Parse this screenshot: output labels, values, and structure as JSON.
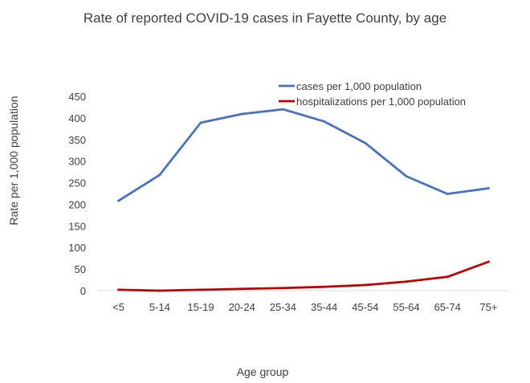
{
  "chart_data": {
    "type": "line",
    "title": "Rate of reported COVID-19 cases in Fayette County, by age",
    "xlabel": "Age group",
    "ylabel": "Rate per 1,000 population",
    "categories": [
      "<5",
      "5-14",
      "15-19",
      "20-24",
      "25-34",
      "35-44",
      "45-54",
      "55-64",
      "65-74",
      "75+"
    ],
    "ylim": [
      0,
      450
    ],
    "yticks": [
      0,
      50,
      100,
      150,
      200,
      250,
      300,
      350,
      400,
      450
    ],
    "grid": false,
    "legend_position": "top-right",
    "series": [
      {
        "name": "cases per 1,000 population",
        "color": "#4472c4",
        "values": [
          208,
          268,
          389,
          409,
          420,
          392,
          342,
          265,
          224,
          237
        ]
      },
      {
        "name": "hospitalizations per 1,000 population",
        "color": "#c00000",
        "values": [
          2,
          0,
          2,
          4,
          6,
          9,
          13,
          21,
          32,
          67
        ]
      }
    ]
  }
}
